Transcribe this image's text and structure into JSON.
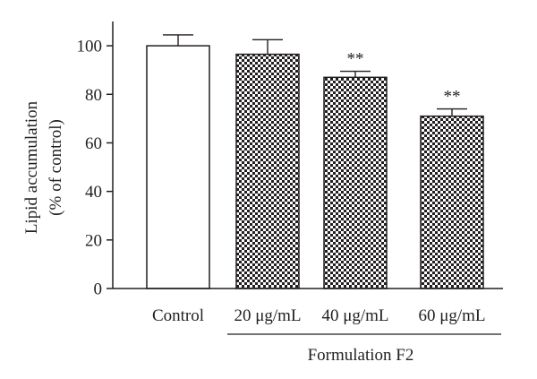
{
  "chart_data": {
    "type": "bar",
    "title": "",
    "xlabel": "",
    "ylabel": [
      "Lipid accumulation",
      "(% of control)"
    ],
    "ylim": [
      0,
      110
    ],
    "yticks": [
      0,
      20,
      40,
      60,
      80,
      100
    ],
    "categories": [
      "Control",
      "20 μg/mL",
      "40 μg/mL",
      "60 μg/mL"
    ],
    "values": [
      100,
      96.5,
      87,
      71
    ],
    "errors": [
      4.5,
      6,
      2.5,
      3
    ],
    "significance": [
      "",
      "",
      "**",
      "**"
    ],
    "fill": [
      "open",
      "checkered",
      "checkered",
      "checkered"
    ],
    "group_label": "Formulation F2",
    "group_covers": [
      "20 μg/mL",
      "40 μg/mL",
      "60 μg/mL"
    ],
    "grid": false,
    "colors": {
      "ink": "#231f20",
      "background": "#ffffff"
    }
  }
}
